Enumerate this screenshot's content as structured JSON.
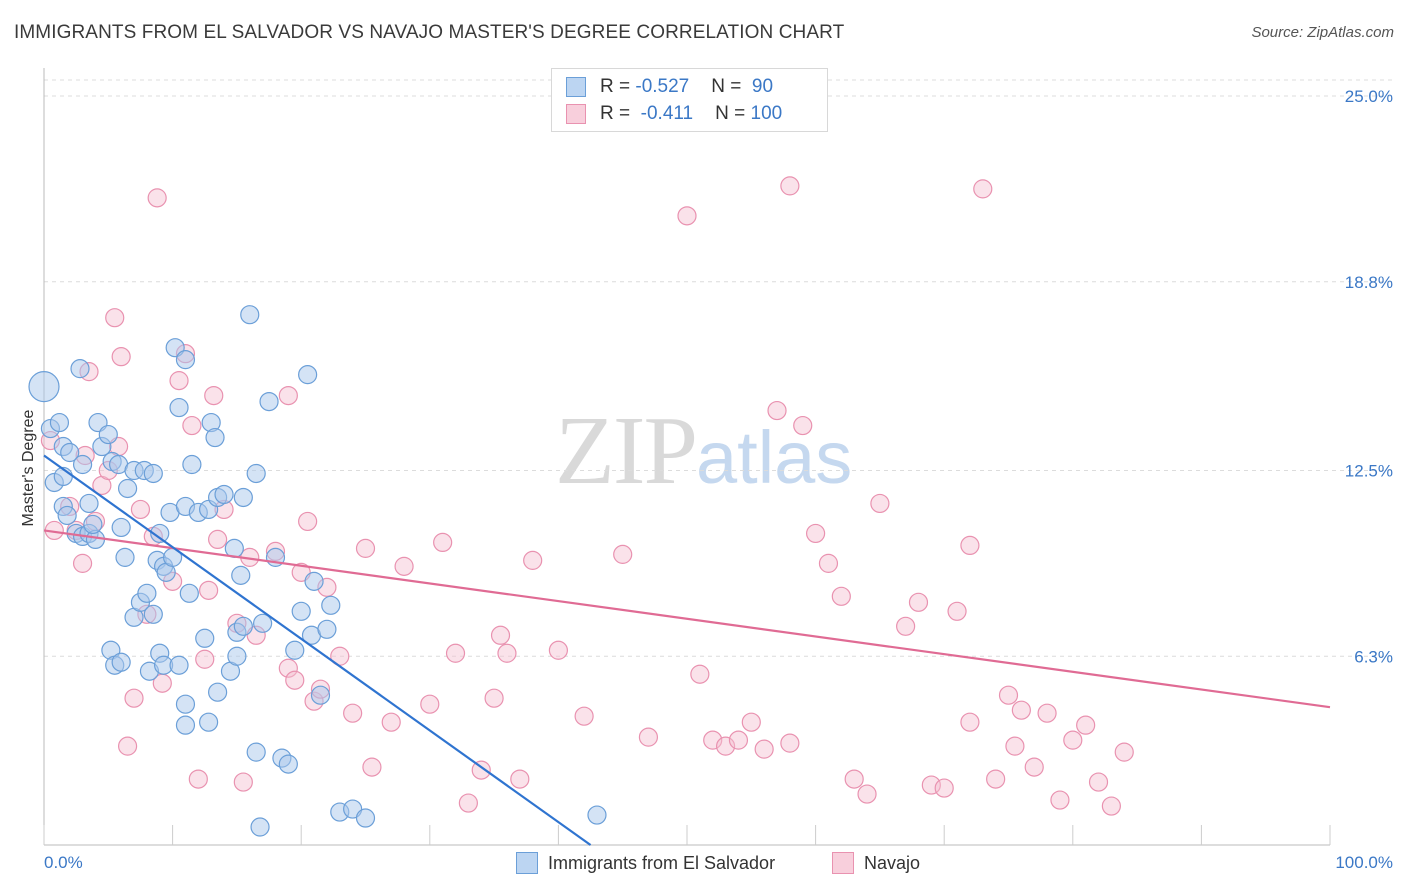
{
  "header": {
    "title": "IMMIGRANTS FROM EL SALVADOR VS NAVAJO MASTER'S DEGREE CORRELATION CHART",
    "source": "Source: ZipAtlas.com"
  },
  "watermark": {
    "zip": "ZIP",
    "atlas": "atlas"
  },
  "legend_top": {
    "rows": [
      {
        "r_label": "R = ",
        "r_value": "-0.527",
        "n_label": "N = ",
        "n_value": " 90"
      },
      {
        "r_label": "R = ",
        "r_value": " -0.411",
        "n_label": "N = ",
        "n_value": "100"
      }
    ]
  },
  "legend_bottom": {
    "series1": "Immigrants from El Salvador",
    "series2": "Navajo"
  },
  "colors": {
    "blue_fill": "#a9c8ec",
    "blue_stroke": "#6b9fd8",
    "blue_line": "#2f74d0",
    "pink_fill": "#f5bfd0",
    "pink_stroke": "#e992b0",
    "pink_line": "#e06b94",
    "grid": "#dcdcdc",
    "tick_label": "#3b78c6"
  },
  "chart_data": {
    "type": "scatter",
    "title": "IMMIGRANTS FROM EL SALVADOR VS NAVAJO MASTER'S DEGREE CORRELATION CHART",
    "xlabel": "",
    "ylabel": "Master's Degree",
    "xlim": [
      0,
      100
    ],
    "ylim": [
      0,
      26
    ],
    "y_ticks": [
      {
        "value": 6.3,
        "label": "6.3%"
      },
      {
        "value": 12.5,
        "label": "12.5%"
      },
      {
        "value": 18.8,
        "label": "18.8%"
      },
      {
        "value": 25.0,
        "label": "25.0%"
      }
    ],
    "x_tick_labels": [
      {
        "value": 0,
        "label": "0.0%"
      },
      {
        "value": 100,
        "label": "100.0%"
      }
    ],
    "grid": true,
    "legend_position": "top-center",
    "series": [
      {
        "name": "Immigrants from El Salvador",
        "color": "#a9c8ec",
        "trend": {
          "x0": 0,
          "y0": 13.0,
          "x1": 42.5,
          "y1": 0
        },
        "points": [
          [
            0,
            15.3
          ],
          [
            0.5,
            13.9
          ],
          [
            1.2,
            14.1
          ],
          [
            0.8,
            12.1
          ],
          [
            1.5,
            13.3
          ],
          [
            2,
            13.1
          ],
          [
            1.5,
            11.3
          ],
          [
            1.8,
            11
          ],
          [
            2.5,
            10.4
          ],
          [
            3,
            10.3
          ],
          [
            3.5,
            10.4
          ],
          [
            4,
            10.2
          ],
          [
            3.5,
            11.4
          ],
          [
            3.8,
            10.7
          ],
          [
            3,
            12.7
          ],
          [
            2.8,
            15.9
          ],
          [
            4.2,
            14.1
          ],
          [
            4.5,
            13.3
          ],
          [
            5,
            13.7
          ],
          [
            5.3,
            12.8
          ],
          [
            5.8,
            12.7
          ],
          [
            6,
            10.6
          ],
          [
            6.5,
            11.9
          ],
          [
            6.3,
            9.6
          ],
          [
            7,
            7.6
          ],
          [
            7.5,
            8.1
          ],
          [
            7,
            12.5
          ],
          [
            7.8,
            12.5
          ],
          [
            8.5,
            12.4
          ],
          [
            8.8,
            9.5
          ],
          [
            8,
            8.4
          ],
          [
            8.5,
            7.7
          ],
          [
            9,
            10.4
          ],
          [
            9.3,
            9.3
          ],
          [
            9.8,
            11.1
          ],
          [
            9.5,
            9.1
          ],
          [
            10,
            9.6
          ],
          [
            10.5,
            14.6
          ],
          [
            10.2,
            16.6
          ],
          [
            11,
            16.2
          ],
          [
            11,
            11.3
          ],
          [
            11.3,
            8.4
          ],
          [
            11.5,
            12.7
          ],
          [
            12,
            11.1
          ],
          [
            12.8,
            11.2
          ],
          [
            13,
            14.1
          ],
          [
            13.3,
            13.6
          ],
          [
            13.5,
            11.6
          ],
          [
            14,
            11.7
          ],
          [
            14.5,
            5.8
          ],
          [
            15,
            6.3
          ],
          [
            15,
            7.1
          ],
          [
            15.5,
            7.3
          ],
          [
            15.5,
            11.6
          ],
          [
            15.3,
            9.0
          ],
          [
            14.8,
            9.9
          ],
          [
            16,
            17.7
          ],
          [
            16.5,
            3.1
          ],
          [
            16.8,
            0.6
          ],
          [
            17,
            7.4
          ],
          [
            16.5,
            12.4
          ],
          [
            17.5,
            14.8
          ],
          [
            18,
            9.6
          ],
          [
            18.5,
            2.9
          ],
          [
            19,
            2.7
          ],
          [
            19.5,
            6.5
          ],
          [
            20,
            7.8
          ],
          [
            20.5,
            15.7
          ],
          [
            20.8,
            7.0
          ],
          [
            21,
            8.8
          ],
          [
            21.5,
            5.0
          ],
          [
            22,
            7.2
          ],
          [
            22.3,
            8.0
          ],
          [
            23,
            1.1
          ],
          [
            24,
            1.2
          ],
          [
            25,
            0.9
          ],
          [
            43,
            1.0
          ],
          [
            1.5,
            12.3
          ],
          [
            5.2,
            6.5
          ],
          [
            5.5,
            6.0
          ],
          [
            6,
            6.1
          ],
          [
            8.2,
            5.8
          ],
          [
            9,
            6.4
          ],
          [
            9.3,
            6.0
          ],
          [
            10.5,
            6.0
          ],
          [
            11,
            4.7
          ],
          [
            11,
            4.0
          ],
          [
            12.8,
            4.1
          ],
          [
            12.5,
            6.9
          ],
          [
            13.5,
            5.1
          ]
        ]
      },
      {
        "name": "Navajo",
        "color": "#f5bfd0",
        "trend": {
          "x0": 0,
          "y0": 10.5,
          "x1": 100,
          "y1": 4.6
        },
        "points": [
          [
            0.5,
            13.5
          ],
          [
            0.8,
            10.5
          ],
          [
            2,
            11.3
          ],
          [
            2.5,
            10.5
          ],
          [
            3,
            9.4
          ],
          [
            3.2,
            13.0
          ],
          [
            3.5,
            15.8
          ],
          [
            4,
            10.8
          ],
          [
            4.5,
            12.0
          ],
          [
            5,
            12.5
          ],
          [
            5.5,
            17.6
          ],
          [
            5.8,
            13.3
          ],
          [
            6,
            16.3
          ],
          [
            6.5,
            3.3
          ],
          [
            7,
            4.9
          ],
          [
            7.5,
            11.2
          ],
          [
            8,
            7.7
          ],
          [
            8.5,
            10.3
          ],
          [
            8.8,
            21.6
          ],
          [
            9.2,
            5.4
          ],
          [
            10,
            8.8
          ],
          [
            10.5,
            15.5
          ],
          [
            11,
            16.4
          ],
          [
            11.5,
            14.0
          ],
          [
            12,
            2.2
          ],
          [
            12.5,
            6.2
          ],
          [
            12.8,
            8.5
          ],
          [
            13.2,
            15.0
          ],
          [
            13.5,
            10.2
          ],
          [
            14,
            11.2
          ],
          [
            15,
            7.4
          ],
          [
            15.5,
            2.1
          ],
          [
            16,
            9.6
          ],
          [
            16.5,
            7.0
          ],
          [
            18,
            9.8
          ],
          [
            19,
            15.0
          ],
          [
            19,
            5.9
          ],
          [
            19.5,
            5.5
          ],
          [
            20,
            9.1
          ],
          [
            20.5,
            10.8
          ],
          [
            21,
            4.8
          ],
          [
            21.5,
            5.2
          ],
          [
            22,
            8.6
          ],
          [
            23,
            6.3
          ],
          [
            24,
            4.4
          ],
          [
            25,
            9.9
          ],
          [
            25.5,
            2.6
          ],
          [
            27,
            4.1
          ],
          [
            28,
            9.3
          ],
          [
            30,
            4.7
          ],
          [
            31,
            10.1
          ],
          [
            32,
            6.4
          ],
          [
            33,
            1.4
          ],
          [
            34,
            2.5
          ],
          [
            35,
            4.9
          ],
          [
            35.5,
            7.0
          ],
          [
            36,
            6.4
          ],
          [
            37,
            2.2
          ],
          [
            38,
            9.5
          ],
          [
            40,
            6.5
          ],
          [
            42,
            4.3
          ],
          [
            45,
            9.7
          ],
          [
            47,
            3.6
          ],
          [
            50,
            21.0
          ],
          [
            51,
            5.7
          ],
          [
            52,
            3.5
          ],
          [
            53,
            3.3
          ],
          [
            54,
            3.5
          ],
          [
            55,
            4.1
          ],
          [
            56,
            3.2
          ],
          [
            57,
            14.5
          ],
          [
            58,
            22.0
          ],
          [
            58,
            3.4
          ],
          [
            59,
            14.0
          ],
          [
            60,
            10.4
          ],
          [
            61,
            9.4
          ],
          [
            62,
            8.3
          ],
          [
            63,
            2.2
          ],
          [
            64,
            1.7
          ],
          [
            65,
            11.4
          ],
          [
            67,
            7.3
          ],
          [
            68,
            8.1
          ],
          [
            69,
            2.0
          ],
          [
            70,
            1.9
          ],
          [
            72,
            10.0
          ],
          [
            71,
            7.8
          ],
          [
            72,
            4.1
          ],
          [
            73,
            21.9
          ],
          [
            74,
            2.2
          ],
          [
            75,
            5.0
          ],
          [
            75.5,
            3.3
          ],
          [
            76,
            4.5
          ],
          [
            77,
            2.6
          ],
          [
            78,
            4.4
          ],
          [
            79,
            1.5
          ],
          [
            80,
            3.5
          ],
          [
            81,
            4.0
          ],
          [
            82,
            2.1
          ],
          [
            83,
            1.3
          ],
          [
            84,
            3.1
          ]
        ]
      }
    ]
  }
}
